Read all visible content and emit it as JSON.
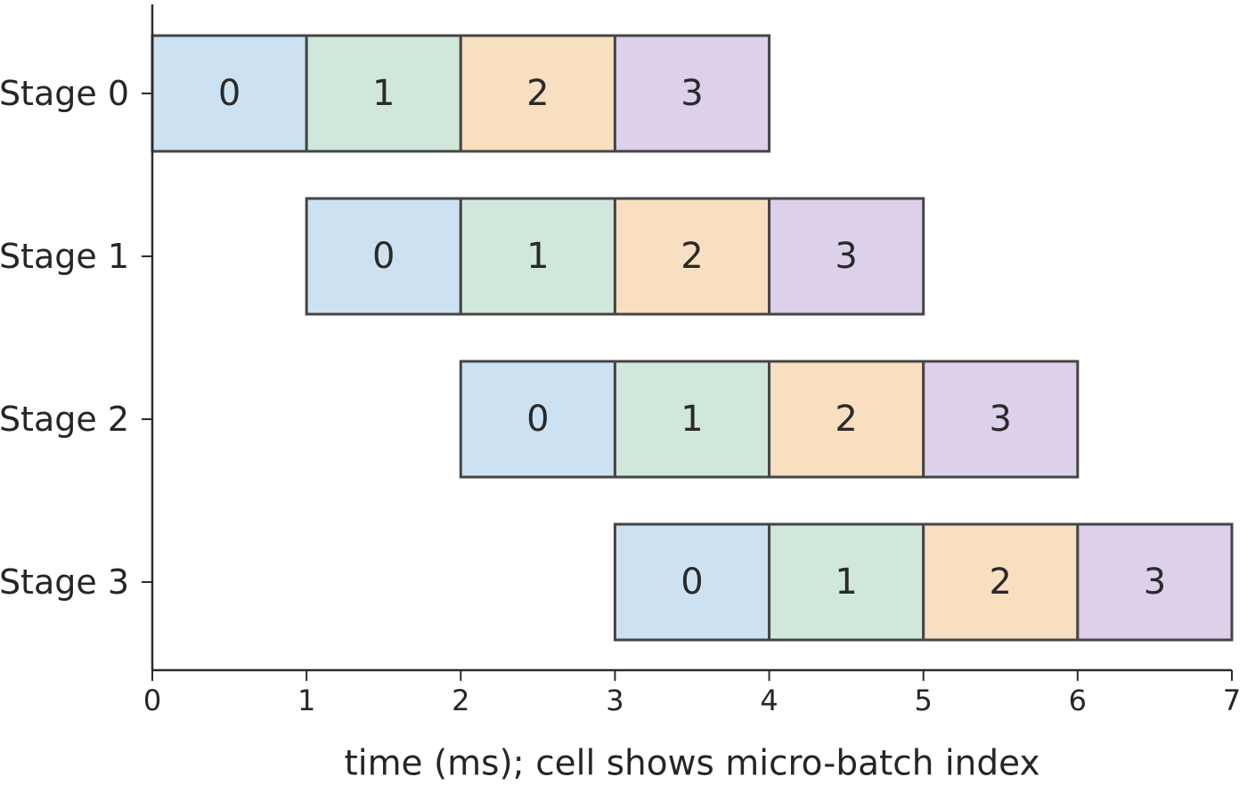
{
  "chart_data": {
    "type": "gantt",
    "title": "",
    "xlabel": "time (ms); cell shows micro-batch index",
    "ylabel": "",
    "xlim": [
      0,
      7
    ],
    "xticks": [
      "0",
      "1",
      "2",
      "3",
      "4",
      "5",
      "6",
      "7"
    ],
    "grid": false,
    "stages": [
      "Stage 0",
      "Stage 1",
      "Stage 2",
      "Stage 3"
    ],
    "cell_duration": 1,
    "colors": {
      "micro_batch_0": "#cce2f2",
      "micro_batch_1": "#d0e8dc",
      "micro_batch_2": "#f8dfc0",
      "micro_batch_3": "#ddd0ea",
      "border": "#454545",
      "axis": "#2b2b2b"
    },
    "cells": [
      {
        "stage": 0,
        "start": 0,
        "end": 1,
        "micro_batch": "0"
      },
      {
        "stage": 0,
        "start": 1,
        "end": 2,
        "micro_batch": "1"
      },
      {
        "stage": 0,
        "start": 2,
        "end": 3,
        "micro_batch": "2"
      },
      {
        "stage": 0,
        "start": 3,
        "end": 4,
        "micro_batch": "3"
      },
      {
        "stage": 1,
        "start": 1,
        "end": 2,
        "micro_batch": "0"
      },
      {
        "stage": 1,
        "start": 2,
        "end": 3,
        "micro_batch": "1"
      },
      {
        "stage": 1,
        "start": 3,
        "end": 4,
        "micro_batch": "2"
      },
      {
        "stage": 1,
        "start": 4,
        "end": 5,
        "micro_batch": "3"
      },
      {
        "stage": 2,
        "start": 2,
        "end": 3,
        "micro_batch": "0"
      },
      {
        "stage": 2,
        "start": 3,
        "end": 4,
        "micro_batch": "1"
      },
      {
        "stage": 2,
        "start": 4,
        "end": 5,
        "micro_batch": "2"
      },
      {
        "stage": 2,
        "start": 5,
        "end": 6,
        "micro_batch": "3"
      },
      {
        "stage": 3,
        "start": 3,
        "end": 4,
        "micro_batch": "0"
      },
      {
        "stage": 3,
        "start": 4,
        "end": 5,
        "micro_batch": "1"
      },
      {
        "stage": 3,
        "start": 5,
        "end": 6,
        "micro_batch": "2"
      },
      {
        "stage": 3,
        "start": 6,
        "end": 7,
        "micro_batch": "3"
      }
    ]
  }
}
